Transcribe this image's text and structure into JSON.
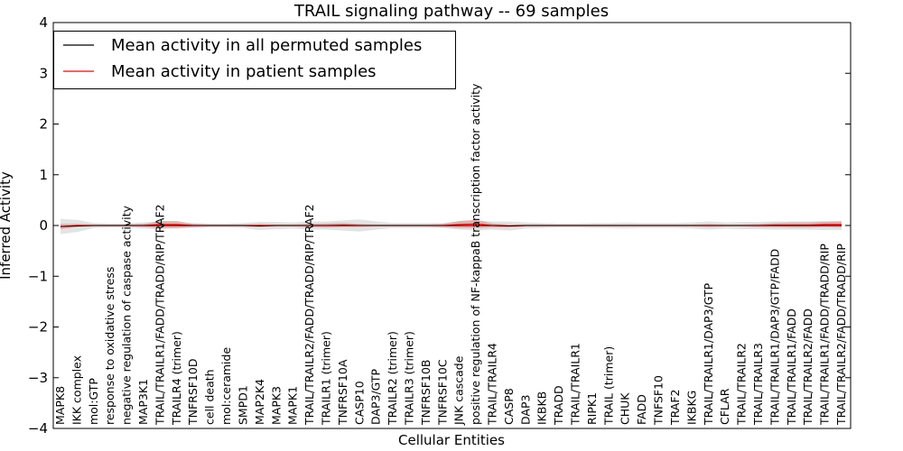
{
  "chart_data": {
    "type": "line",
    "title": "TRAIL signaling pathway -- 69 samples",
    "xlabel": "Cellular Entities",
    "ylabel": "Inferred Activity",
    "ylim": [
      -4,
      4
    ],
    "yticks": [
      "4",
      "3",
      "2",
      "1",
      "0",
      "−1",
      "−2",
      "−3",
      "−4"
    ],
    "legend": {
      "position": "top-left",
      "entries": [
        {
          "label": "Mean activity in all permuted samples",
          "color": "#000000"
        },
        {
          "label": "Mean activity in patient samples",
          "color": "#ff0000"
        }
      ]
    },
    "colors": {
      "permuted": "#000000",
      "patient": "#ff0000",
      "permuted_band": "#cccccc",
      "patient_band": "#f08080"
    },
    "categories": [
      "MAPK8",
      "IKK complex",
      "mol:GTP",
      "response to oxidative stress",
      "negative regulation of caspase activity",
      "MAP3K1",
      "TRAIL/TRAILR1/FADD/TRADD/RIP/TRAF2",
      "TRAILR4 (trimer)",
      "TNFRSF10D",
      "cell death",
      "mol:ceramide",
      "SMPD1",
      "MAP2K4",
      "MAPK3",
      "MAPK1",
      "TRAIL/TRAILR2/FADD/TRADD/RIP/TRAF2",
      "TRAILR1 (trimer)",
      "TNFRSF10A",
      "CASP10",
      "DAP3/GTP",
      "TRAILR2 (trimer)",
      "TRAILR3 (trimer)",
      "TNFRSF10B",
      "TNFRSF10C",
      "JNK cascade",
      "positive regulation of NF-kappaB transcription factor activity",
      "TRAIL/TRAILR4",
      "CASP8",
      "DAP3",
      "IKBKB",
      "TRADD",
      "TRAIL/TRAILR1",
      "RIPK1",
      "TRAIL (trimer)",
      "CHUK",
      "FADD",
      "TNFSF10",
      "TRAF2",
      "IKBKG",
      "TRAIL/TRAILR1/DAP3/GTP",
      "CFLAR",
      "TRAIL/TRAILR2",
      "TRAIL/TRAILR3",
      "TRAIL/TRAILR1/DAP3/GTP/FADD",
      "TRAIL/TRAILR1/FADD",
      "TRAIL/TRAILR2/FADD",
      "TRAIL/TRAILR1/FADD/TRADD/RIP",
      "TRAIL/TRAILR2/FADD/TRADD/RIP"
    ],
    "series": [
      {
        "name": "Mean activity in all permuted samples",
        "values": [
          -0.02,
          -0.01,
          0.0,
          0.0,
          0.0,
          0.0,
          0.0,
          0.0,
          0.0,
          0.0,
          0.0,
          0.0,
          -0.01,
          0.0,
          0.0,
          0.0,
          0.0,
          0.0,
          0.0,
          0.0,
          0.0,
          0.0,
          0.0,
          0.0,
          0.0,
          0.0,
          0.0,
          -0.01,
          0.0,
          0.0,
          0.0,
          0.0,
          0.0,
          0.0,
          0.0,
          0.0,
          0.0,
          0.0,
          0.0,
          0.0,
          0.0,
          0.0,
          0.0,
          0.0,
          0.0,
          0.0,
          0.0,
          0.0
        ],
        "band": [
          0.15,
          0.12,
          0.05,
          0.04,
          0.04,
          0.06,
          0.07,
          0.06,
          0.05,
          0.04,
          0.04,
          0.05,
          0.08,
          0.07,
          0.06,
          0.08,
          0.08,
          0.1,
          0.12,
          0.08,
          0.05,
          0.05,
          0.05,
          0.05,
          0.08,
          0.1,
          0.08,
          0.09,
          0.06,
          0.05,
          0.04,
          0.04,
          0.05,
          0.05,
          0.06,
          0.05,
          0.05,
          0.05,
          0.06,
          0.08,
          0.06,
          0.07,
          0.07,
          0.08,
          0.08,
          0.08,
          0.09,
          0.09
        ]
      },
      {
        "name": "Mean activity in patient samples",
        "values": [
          -0.02,
          0.0,
          0.0,
          0.0,
          0.0,
          0.0,
          0.02,
          0.02,
          0.0,
          0.0,
          0.0,
          0.0,
          0.0,
          0.0,
          0.0,
          0.0,
          0.0,
          0.01,
          0.0,
          0.0,
          0.0,
          0.0,
          0.0,
          0.0,
          0.02,
          0.03,
          0.0,
          -0.01,
          0.0,
          0.0,
          0.0,
          0.0,
          0.0,
          0.0,
          0.0,
          0.0,
          0.0,
          0.0,
          0.0,
          0.0,
          0.0,
          0.0,
          0.0,
          0.01,
          0.01,
          0.01,
          0.02,
          0.02
        ],
        "band": [
          0.05,
          0.03,
          0.02,
          0.02,
          0.02,
          0.03,
          0.07,
          0.07,
          0.03,
          0.02,
          0.02,
          0.02,
          0.03,
          0.02,
          0.02,
          0.03,
          0.04,
          0.04,
          0.03,
          0.02,
          0.02,
          0.02,
          0.02,
          0.03,
          0.07,
          0.08,
          0.04,
          0.03,
          0.02,
          0.02,
          0.02,
          0.02,
          0.02,
          0.02,
          0.02,
          0.02,
          0.02,
          0.02,
          0.02,
          0.03,
          0.02,
          0.02,
          0.03,
          0.04,
          0.05,
          0.05,
          0.05,
          0.06
        ]
      }
    ]
  }
}
